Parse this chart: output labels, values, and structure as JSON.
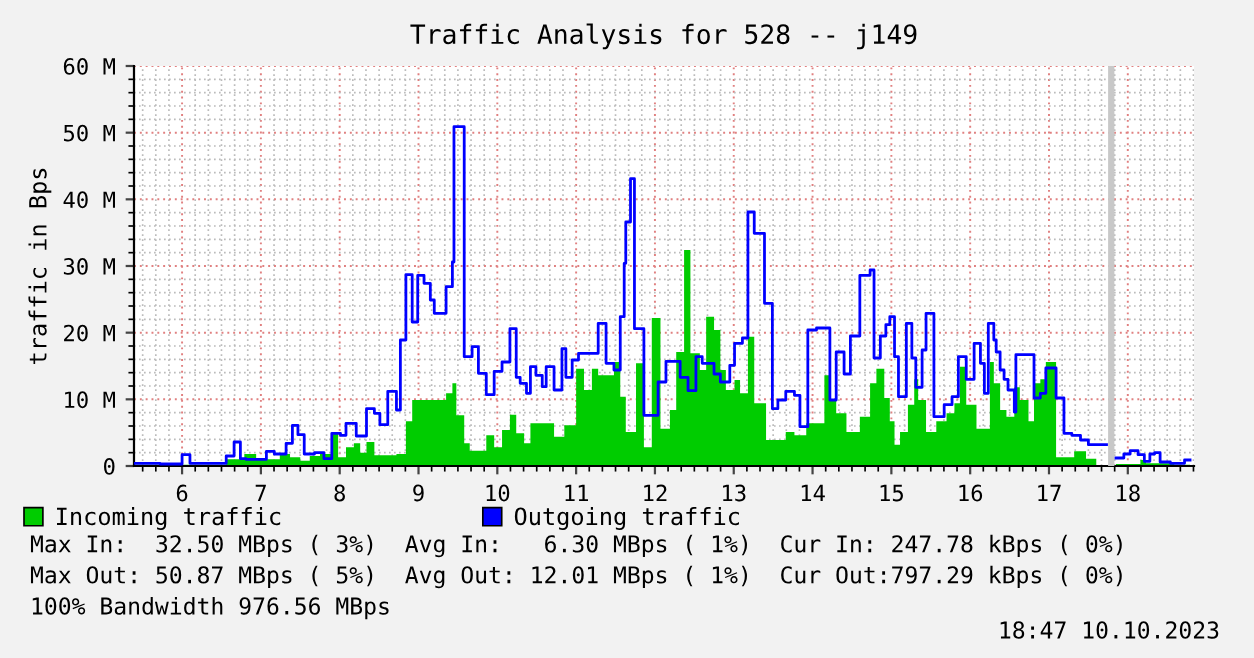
{
  "chart_data": {
    "type": "area",
    "title": "Traffic Analysis for 528 -- j149",
    "ylabel": "traffic in Bps",
    "xlim": [
      5.39,
      18.84
    ],
    "xticks": [
      6,
      7,
      8,
      9,
      10,
      11,
      12,
      13,
      14,
      15,
      16,
      17,
      18
    ],
    "ylim": [
      0,
      60
    ],
    "yticks": [
      0,
      {
        "value": 10,
        "label": "10 M"
      },
      {
        "value": 20,
        "label": "20 M"
      },
      {
        "value": 30,
        "label": "30 M"
      },
      {
        "value": 40,
        "label": "40 M"
      },
      {
        "value": 50,
        "label": "50 M"
      },
      {
        "value": 60,
        "label": "60 M"
      }
    ],
    "grid": true,
    "legend": "bottom",
    "line_style": "solid",
    "marker": "none",
    "bands": [
      {
        "axis": "x",
        "from": 17.75,
        "to": 17.83,
        "color": "#c8c8c8"
      }
    ],
    "series": [
      {
        "name": "Incoming traffic",
        "color": "#00cc00",
        "x": [
          5.39,
          6.56,
          6.79,
          6.94,
          7.24,
          7.37,
          7.5,
          7.62,
          7.75,
          7.9,
          7.98,
          8.08,
          8.18,
          8.26,
          8.34,
          8.44,
          8.72,
          8.84,
          8.92,
          9.35,
          9.43,
          9.48,
          9.58,
          9.65,
          9.86,
          9.96,
          10.06,
          10.16,
          10.24,
          10.34,
          10.42,
          10.72,
          10.85,
          11.0,
          11.1,
          11.2,
          11.28,
          11.48,
          11.56,
          11.63,
          11.76,
          11.86,
          11.96,
          12.07,
          12.19,
          12.27,
          12.37,
          12.45,
          12.57,
          12.65,
          12.75,
          12.83,
          12.9,
          13.01,
          13.08,
          13.18,
          13.26,
          13.41,
          13.66,
          13.77,
          13.92,
          14.15,
          14.22,
          14.3,
          14.43,
          14.6,
          14.73,
          14.81,
          14.91,
          14.98,
          15.04,
          15.11,
          15.21,
          15.29,
          15.34,
          15.44,
          15.57,
          15.7,
          15.8,
          15.87,
          15.95,
          16.08,
          16.25,
          16.3,
          16.38,
          16.46,
          16.56,
          16.63,
          16.74,
          16.81,
          16.89,
          16.96,
          17.09,
          17.32,
          17.47,
          17.6,
          17.73,
          17.85,
          18.16,
          18.23,
          18.59,
          18.79
        ],
        "values": [
          0.2,
          1.0,
          1.8,
          1.0,
          1.8,
          1.3,
          0.8,
          1.5,
          1.8,
          4.9,
          1.3,
          2.8,
          3.4,
          2.0,
          3.6,
          1.6,
          1.8,
          6.7,
          9.9,
          10.9,
          12.4,
          7.6,
          3.4,
          2.3,
          4.6,
          2.8,
          5.4,
          7.7,
          4.9,
          3.4,
          6.4,
          4.4,
          6.1,
          14.6,
          11.4,
          14.6,
          13.6,
          15.6,
          10.4,
          5.1,
          15.4,
          2.8,
          22.2,
          5.6,
          8.4,
          17.1,
          32.4,
          16.9,
          14.4,
          22.4,
          20.4,
          14.4,
          11.4,
          12.9,
          10.9,
          19.4,
          9.4,
          3.9,
          5.1,
          4.6,
          6.4,
          13.6,
          9.9,
          7.9,
          5.1,
          7.4,
          12.4,
          14.6,
          10.2,
          6.7,
          3.2,
          5.1,
          9.2,
          13.0,
          9.9,
          5.1,
          6.7,
          7.9,
          9.4,
          14.9,
          9.2,
          5.6,
          15.6,
          12.4,
          8.4,
          7.4,
          11.8,
          9.9,
          6.7,
          12.4,
          13.0,
          15.6,
          1.3,
          2.2,
          1.1,
          0.7,
          null,
          0.3,
          0.9,
          0.4,
          0.2,
          0.2
        ]
      },
      {
        "name": "Outgoing traffic",
        "type": "step",
        "color": "#0000ff",
        "x": [
          5.39,
          5.72,
          6.0,
          6.1,
          6.56,
          6.66,
          6.74,
          6.81,
          7.07,
          7.17,
          7.32,
          7.4,
          7.47,
          7.55,
          7.68,
          7.8,
          7.9,
          8.01,
          8.08,
          8.21,
          8.34,
          8.44,
          8.51,
          8.61,
          8.72,
          8.77,
          8.84,
          8.92,
          8.99,
          9.07,
          9.15,
          9.2,
          9.35,
          9.43,
          9.45,
          9.58,
          9.68,
          9.76,
          9.86,
          9.96,
          10.06,
          10.16,
          10.24,
          10.29,
          10.37,
          10.42,
          10.49,
          10.57,
          10.62,
          10.72,
          10.82,
          10.87,
          10.95,
          11.03,
          11.28,
          11.38,
          11.48,
          11.56,
          11.61,
          11.63,
          11.69,
          11.74,
          11.86,
          12.04,
          12.14,
          12.32,
          12.42,
          12.52,
          12.6,
          12.75,
          12.83,
          12.95,
          13.01,
          13.11,
          13.18,
          13.26,
          13.39,
          13.49,
          13.56,
          13.66,
          13.77,
          13.84,
          13.94,
          14.05,
          14.22,
          14.3,
          14.4,
          14.48,
          14.6,
          14.73,
          14.78,
          14.86,
          14.93,
          14.98,
          15.04,
          15.09,
          15.19,
          15.26,
          15.31,
          15.39,
          15.44,
          15.54,
          15.67,
          15.77,
          15.85,
          15.95,
          16.05,
          16.13,
          16.18,
          16.23,
          16.3,
          16.33,
          16.38,
          16.43,
          16.48,
          16.56,
          16.58,
          16.81,
          16.89,
          16.96,
          17.09,
          17.19,
          17.29,
          17.4,
          17.5,
          17.73,
          17.85,
          17.95,
          18.03,
          18.13,
          18.21,
          18.28,
          18.34,
          18.41,
          18.54,
          18.72,
          18.79
        ],
        "values": [
          0.4,
          0.3,
          1.7,
          0.4,
          1.5,
          3.6,
          1.1,
          1.0,
          2.2,
          1.8,
          3.4,
          6.1,
          4.7,
          1.8,
          2.0,
          1.1,
          4.9,
          4.6,
          6.4,
          4.5,
          8.6,
          7.9,
          6.2,
          11.2,
          8.4,
          18.9,
          28.7,
          21.6,
          28.6,
          27.4,
          24.9,
          22.9,
          26.9,
          30.6,
          50.9,
          16.4,
          17.9,
          13.9,
          10.7,
          14.2,
          15.6,
          20.6,
          13.3,
          12.4,
          10.9,
          14.9,
          13.6,
          11.9,
          14.9,
          11.4,
          17.6,
          13.3,
          15.9,
          16.9,
          21.4,
          15.4,
          14.4,
          22.4,
          30.4,
          36.6,
          43.1,
          20.6,
          7.6,
          12.6,
          15.7,
          13.3,
          11.3,
          16.4,
          15.4,
          13.8,
          12.6,
          15.1,
          18.4,
          19.2,
          38.1,
          34.9,
          24.4,
          8.6,
          9.9,
          11.2,
          10.6,
          5.9,
          20.4,
          20.7,
          9.9,
          17.1,
          13.8,
          19.5,
          28.6,
          29.4,
          16.2,
          19.5,
          21.2,
          22.4,
          16.4,
          10.4,
          21.4,
          16.2,
          11.8,
          17.4,
          22.9,
          7.4,
          9.2,
          10.4,
          16.4,
          13.0,
          18.4,
          15.4,
          10.9,
          21.4,
          18.9,
          17.1,
          14.4,
          13.0,
          11.4,
          8.1,
          16.7,
          10.2,
          10.9,
          14.7,
          10.2,
          4.9,
          4.6,
          3.9,
          3.2,
          null,
          1.2,
          1.8,
          2.3,
          1.7,
          0.7,
          1.8,
          2.0,
          0.6,
          0.4,
          0.9,
          0.9
        ]
      }
    ],
    "annotations": [
      "Max In:  32.50 MBps ( 3%)  Avg In:   6.30 MBps ( 1%)  Cur In: 247.78 kBps ( 0%)",
      "Max Out: 50.87 MBps ( 5%)  Avg Out: 12.01 MBps ( 1%)  Cur Out:797.29 kBps ( 0%)",
      "100% Bandwidth 976.56 MBps",
      "18:47 10.10.2023"
    ]
  }
}
